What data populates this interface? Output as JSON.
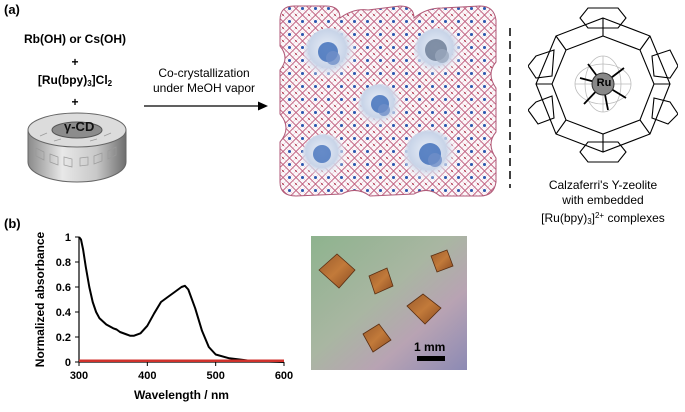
{
  "panel_a": {
    "label": "(a)",
    "reagent_1": "Rb(OH) or Cs(OH)",
    "plus_1": "+",
    "reagent_2_main": "[Ru(bpy)",
    "reagent_2_sub": "3",
    "reagent_2_tail": "]Cl",
    "reagent_2_sub2": "2",
    "plus_2": "+",
    "cd_label": "γ-CD",
    "arrow_line1": "Co-crystallization",
    "arrow_line2": "under MeOH vapor",
    "ru_label": "Ru",
    "caption_line1": "Calzaferri's Y-zeolite",
    "caption_line2": "with embedded",
    "caption_line3_main": "[Ru(bpy)",
    "caption_line3_sub": "3",
    "caption_line3_close": "]",
    "caption_line3_sup": "2+",
    "caption_line3_tail": " complexes"
  },
  "panel_b": {
    "label": "(b)",
    "scale_bar": "1 mm"
  },
  "chart_data": {
    "type": "line",
    "xlabel": "Wavelength / nm",
    "ylabel": "Normalized absorbance",
    "xlim": [
      300,
      600
    ],
    "ylim": [
      0,
      1
    ],
    "x_ticks": [
      "300",
      "400",
      "500",
      "600"
    ],
    "y_ticks": [
      "0",
      "0.2",
      "0.4",
      "0.6",
      "0.8",
      "1"
    ],
    "series": [
      {
        "color": "#000000",
        "x": [
          300,
          303,
          306,
          310,
          315,
          320,
          325,
          330,
          340,
          350,
          355,
          360,
          370,
          375,
          380,
          390,
          400,
          410,
          420,
          430,
          440,
          450,
          455,
          460,
          470,
          480,
          490,
          500,
          520,
          550,
          600
        ],
        "y": [
          1.0,
          0.98,
          0.9,
          0.76,
          0.6,
          0.48,
          0.4,
          0.35,
          0.3,
          0.27,
          0.26,
          0.24,
          0.22,
          0.21,
          0.21,
          0.23,
          0.29,
          0.39,
          0.48,
          0.52,
          0.56,
          0.6,
          0.61,
          0.58,
          0.43,
          0.25,
          0.12,
          0.06,
          0.03,
          0.01,
          0.0
        ]
      },
      {
        "color": "#d0322c",
        "x": [
          300,
          600
        ],
        "y": [
          0.01,
          0.01
        ]
      }
    ]
  },
  "colors": {
    "line_black": "#000000",
    "line_red": "#d0322c",
    "framework_pink": "#c06080",
    "framework_blue": "#2a58b0"
  }
}
